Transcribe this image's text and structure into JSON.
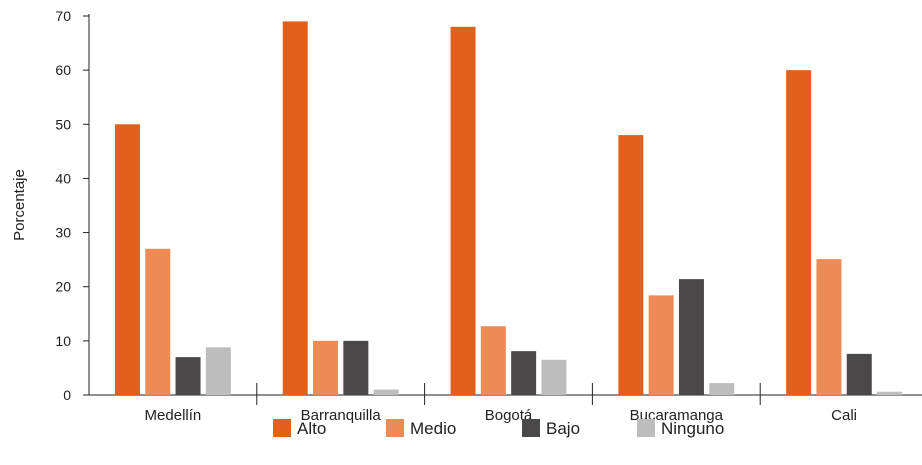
{
  "chart_data": {
    "type": "bar",
    "title": "",
    "xlabel": "",
    "ylabel": "Porcentaje",
    "ylim": [
      0,
      70
    ],
    "yticks": [
      0,
      10,
      20,
      30,
      40,
      50,
      60,
      70
    ],
    "grid": false,
    "legend_position": "bottom",
    "categories": [
      "Medellín",
      "Barranquilla",
      "Bogotá",
      "Bucaramanga",
      "Cali"
    ],
    "series": [
      {
        "name": "Alto",
        "color": "#E2601A",
        "values": [
          50,
          69,
          68,
          48,
          60
        ]
      },
      {
        "name": "Medio",
        "color": "#EC8B55",
        "values": [
          27,
          10,
          12.7,
          18.4,
          25.1
        ]
      },
      {
        "name": "Bajo",
        "color": "#4A4849",
        "values": [
          7,
          10,
          8.1,
          21.4,
          7.6
        ]
      },
      {
        "name": "Ninguno",
        "color": "#BDBDBD",
        "values": [
          8.8,
          1,
          6.5,
          2.2,
          0.6
        ]
      }
    ]
  }
}
